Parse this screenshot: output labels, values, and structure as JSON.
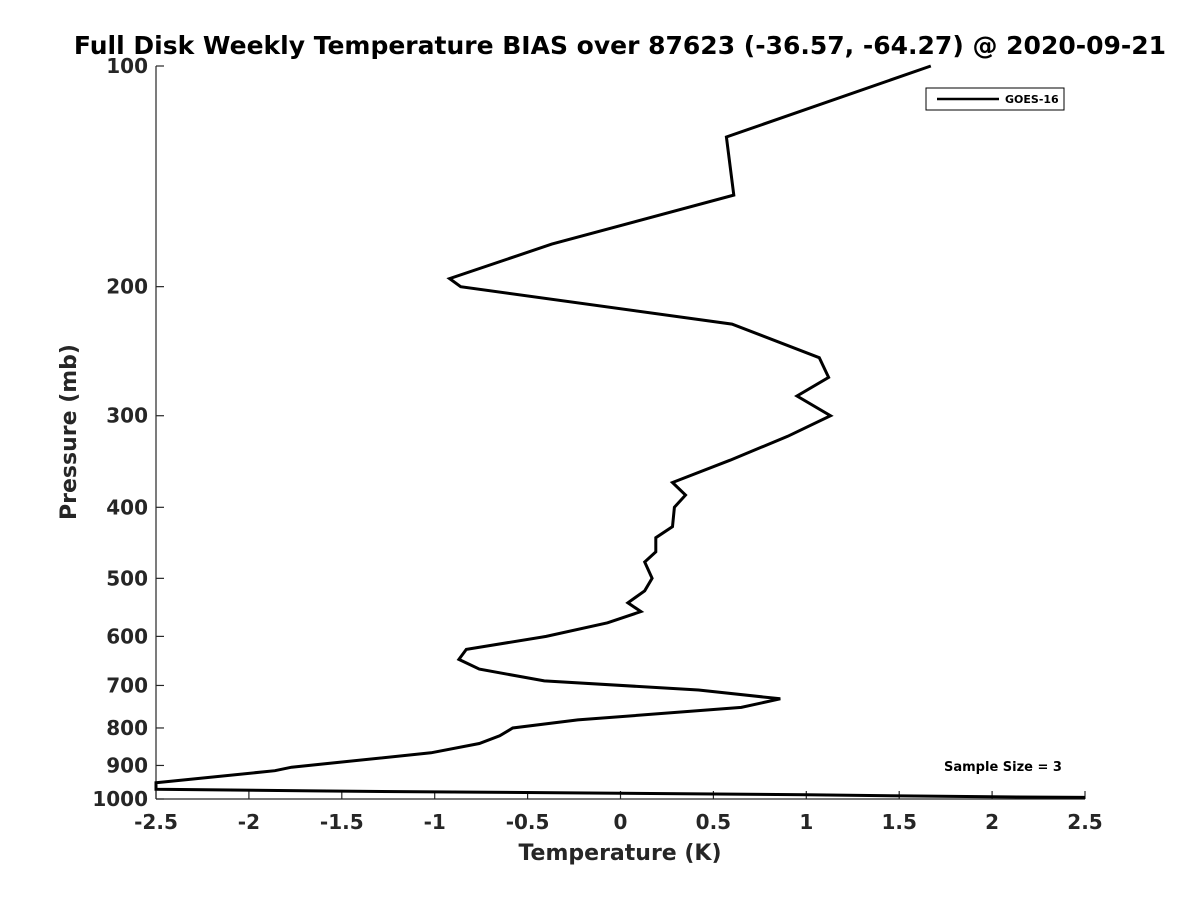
{
  "chart_data": {
    "type": "line",
    "title": "Full Disk Weekly Temperature BIAS over 87623 (-36.57, -64.27) @ 2020-09-21",
    "xlabel": "Temperature (K)",
    "ylabel": "Pressure (mb)",
    "xlim": [
      -2.5,
      2.5
    ],
    "ylim": [
      1000,
      100
    ],
    "y_scale": "log",
    "y_reversed": true,
    "grid": false,
    "legend_position": "top-right",
    "x_ticks": [
      "-2.5",
      "-2",
      "-1.5",
      "-1",
      "-0.5",
      "0",
      "0.5",
      "1",
      "1.5",
      "2",
      "2.5"
    ],
    "y_ticks": [
      "100",
      "200",
      "300",
      "400",
      "500",
      "600",
      "700",
      "800",
      "900",
      "1000"
    ],
    "annotation": "Sample Size = 3",
    "series": [
      {
        "name": "GOES-16",
        "color": "#000000",
        "points": [
          {
            "x": 1.67,
            "y": 100
          },
          {
            "x": 0.57,
            "y": 125
          },
          {
            "x": 0.61,
            "y": 150
          },
          {
            "x": -0.37,
            "y": 175
          },
          {
            "x": -0.92,
            "y": 195
          },
          {
            "x": -0.86,
            "y": 200
          },
          {
            "x": 0.6,
            "y": 225
          },
          {
            "x": 1.07,
            "y": 250
          },
          {
            "x": 1.12,
            "y": 266
          },
          {
            "x": 0.95,
            "y": 282
          },
          {
            "x": 1.13,
            "y": 300
          },
          {
            "x": 0.9,
            "y": 320
          },
          {
            "x": 0.59,
            "y": 345
          },
          {
            "x": 0.28,
            "y": 370
          },
          {
            "x": 0.35,
            "y": 385
          },
          {
            "x": 0.29,
            "y": 400
          },
          {
            "x": 0.28,
            "y": 425
          },
          {
            "x": 0.19,
            "y": 440
          },
          {
            "x": 0.19,
            "y": 460
          },
          {
            "x": 0.13,
            "y": 475
          },
          {
            "x": 0.17,
            "y": 500
          },
          {
            "x": 0.13,
            "y": 520
          },
          {
            "x": 0.04,
            "y": 540
          },
          {
            "x": 0.11,
            "y": 555
          },
          {
            "x": -0.07,
            "y": 575
          },
          {
            "x": -0.4,
            "y": 600
          },
          {
            "x": -0.83,
            "y": 625
          },
          {
            "x": -0.87,
            "y": 645
          },
          {
            "x": -0.76,
            "y": 665
          },
          {
            "x": -0.41,
            "y": 690
          },
          {
            "x": 0.42,
            "y": 710
          },
          {
            "x": 0.86,
            "y": 730
          },
          {
            "x": 0.65,
            "y": 750
          },
          {
            "x": -0.23,
            "y": 780
          },
          {
            "x": -0.58,
            "y": 800
          },
          {
            "x": -0.65,
            "y": 820
          },
          {
            "x": -0.76,
            "y": 840
          },
          {
            "x": -1.02,
            "y": 865
          },
          {
            "x": -1.77,
            "y": 905
          },
          {
            "x": -1.86,
            "y": 915
          },
          {
            "x": -2.5,
            "y": 950
          },
          {
            "x": -2.5,
            "y": 970
          },
          {
            "x": -1.65,
            "y": 975
          },
          {
            "x": -1.0,
            "y": 978
          },
          {
            "x": 0.0,
            "y": 982
          },
          {
            "x": 1.0,
            "y": 987
          },
          {
            "x": 2.0,
            "y": 993
          },
          {
            "x": 2.5,
            "y": 995
          }
        ]
      }
    ]
  }
}
